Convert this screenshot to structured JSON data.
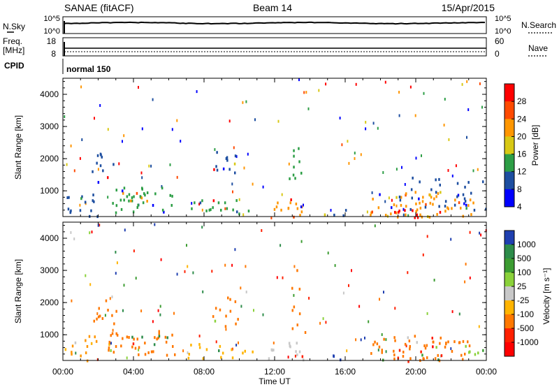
{
  "header": {
    "station": "SANAE (fitACF)",
    "beam": "Beam 14",
    "date": "15/Apr/2015"
  },
  "noise_panel": {
    "left_label": "N.Sky",
    "right_label": "N.Search",
    "left_ticks": [
      "10^5",
      "10^0"
    ],
    "right_ticks": [
      "10^5",
      "10^0"
    ]
  },
  "freq_panel": {
    "left_label": "Freq.",
    "left_unit": "[MHz]",
    "left_ticks": [
      "18",
      "8"
    ],
    "right_label": "Nave",
    "right_ticks": [
      "60",
      "0"
    ]
  },
  "cpid": {
    "label": "CPID",
    "program": "normal 150"
  },
  "x_axis": {
    "label": "Time UT",
    "ticks": [
      "00:00",
      "04:00",
      "08:00",
      "12:00",
      "16:00",
      "20:00",
      "00:00"
    ]
  },
  "chart_data": [
    {
      "type": "heatmap",
      "name": "power",
      "ylabel": "Slant Range [km]",
      "yticks": [
        "4000",
        "3000",
        "2000",
        "1000"
      ],
      "ylim": [
        200,
        4500
      ],
      "xlim": [
        0,
        24
      ],
      "colorbar": {
        "label": "Power [dB]",
        "ticks": [
          "28",
          "24",
          "20",
          "16",
          "12",
          "8",
          "4"
        ],
        "colors": [
          "#ff0000",
          "#ff4a00",
          "#ff9600",
          "#d8c814",
          "#2d9e46",
          "#1d4ea0",
          "#0000ff"
        ]
      },
      "regions": [
        {
          "t0": 0.0,
          "t1": 2.0,
          "r0": 220,
          "r1": 1000,
          "color": "#1d4ea0",
          "density": 0.45
        },
        {
          "t0": 1.5,
          "t1": 3.0,
          "r0": 1300,
          "r1": 2200,
          "color": "#1d4ea0",
          "density": 0.35
        },
        {
          "t0": 2.5,
          "t1": 6.3,
          "r0": 350,
          "r1": 1150,
          "color": "#2d9e46",
          "density": 0.55
        },
        {
          "t0": 3.6,
          "t1": 5.5,
          "r0": 600,
          "r1": 900,
          "color": "#ff9600",
          "density": 0.25
        },
        {
          "t0": 6.8,
          "t1": 10.8,
          "r0": 300,
          "r1": 750,
          "color": "#2d9e46",
          "density": 0.45
        },
        {
          "t0": 8.4,
          "t1": 10.0,
          "r0": 1300,
          "r1": 2300,
          "color": "#1d4ea0",
          "density": 0.35
        },
        {
          "t0": 11.5,
          "t1": 13.6,
          "r0": 200,
          "r1": 900,
          "color": "#ff9600",
          "density": 0.45
        },
        {
          "t0": 12.8,
          "t1": 13.7,
          "r0": 900,
          "r1": 3200,
          "color": "#2d9e46",
          "density": 0.2
        },
        {
          "t0": 14.8,
          "t1": 16.0,
          "r0": 200,
          "r1": 450,
          "color": "#1d4ea0",
          "density": 0.6
        },
        {
          "t0": 17.2,
          "t1": 23.5,
          "r0": 200,
          "r1": 1000,
          "color": "#ff9600",
          "density": 0.5
        },
        {
          "t0": 18.0,
          "t1": 21.5,
          "r0": 200,
          "r1": 600,
          "color": "#ff0000",
          "density": 0.3
        },
        {
          "t0": 19.0,
          "t1": 24.0,
          "r0": 400,
          "r1": 1500,
          "color": "#1d4ea0",
          "density": 0.25
        }
      ]
    },
    {
      "type": "heatmap",
      "name": "velocity",
      "ylabel": "Slant Range [km]",
      "yticks": [
        "4000",
        "3000",
        "2000",
        "1000"
      ],
      "ylim": [
        200,
        4500
      ],
      "xlim": [
        0,
        24
      ],
      "colorbar": {
        "label": "Velocity [m s⁻¹]",
        "ticks": [
          "1000",
          "500",
          "100",
          "25",
          "-25",
          "-100",
          "-500",
          "-1000"
        ],
        "colors": [
          "#1f3fb0",
          "#2d8c4a",
          "#3c9c32",
          "#8ad13a",
          "#c8c8c8",
          "#ffb400",
          "#ff7800",
          "#ff2000",
          "#ff0000"
        ]
      },
      "regions": [
        {
          "t0": 0.0,
          "t1": 2.0,
          "r0": 220,
          "r1": 1000,
          "color": "#ff9600",
          "density": 0.4
        },
        {
          "t0": 1.5,
          "t1": 3.0,
          "r0": 1300,
          "r1": 2200,
          "color": "#ff7800",
          "density": 0.35
        },
        {
          "t0": 2.5,
          "t1": 6.3,
          "r0": 350,
          "r1": 1150,
          "color": "#ff7800",
          "density": 0.55
        },
        {
          "t0": 3.0,
          "t1": 6.0,
          "r0": 500,
          "r1": 1000,
          "color": "#2d8c4a",
          "density": 0.2
        },
        {
          "t0": 6.8,
          "t1": 10.8,
          "r0": 300,
          "r1": 750,
          "color": "#ffb400",
          "density": 0.4
        },
        {
          "t0": 8.4,
          "t1": 10.0,
          "r0": 1300,
          "r1": 2300,
          "color": "#ff7800",
          "density": 0.35
        },
        {
          "t0": 11.5,
          "t1": 13.6,
          "r0": 200,
          "r1": 900,
          "color": "#c8c8c8",
          "density": 0.4
        },
        {
          "t0": 12.8,
          "t1": 13.7,
          "r0": 900,
          "r1": 3200,
          "color": "#ff7800",
          "density": 0.2
        },
        {
          "t0": 14.8,
          "t1": 16.0,
          "r0": 200,
          "r1": 450,
          "color": "#1f3fb0",
          "density": 0.5
        },
        {
          "t0": 17.2,
          "t1": 23.5,
          "r0": 200,
          "r1": 1000,
          "color": "#ff7800",
          "density": 0.5
        },
        {
          "t0": 18.0,
          "t1": 21.5,
          "r0": 200,
          "r1": 600,
          "color": "#ff2000",
          "density": 0.25
        },
        {
          "t0": 22.5,
          "t1": 24.0,
          "r0": 400,
          "r1": 900,
          "color": "#8ad13a",
          "density": 0.3
        }
      ]
    }
  ]
}
